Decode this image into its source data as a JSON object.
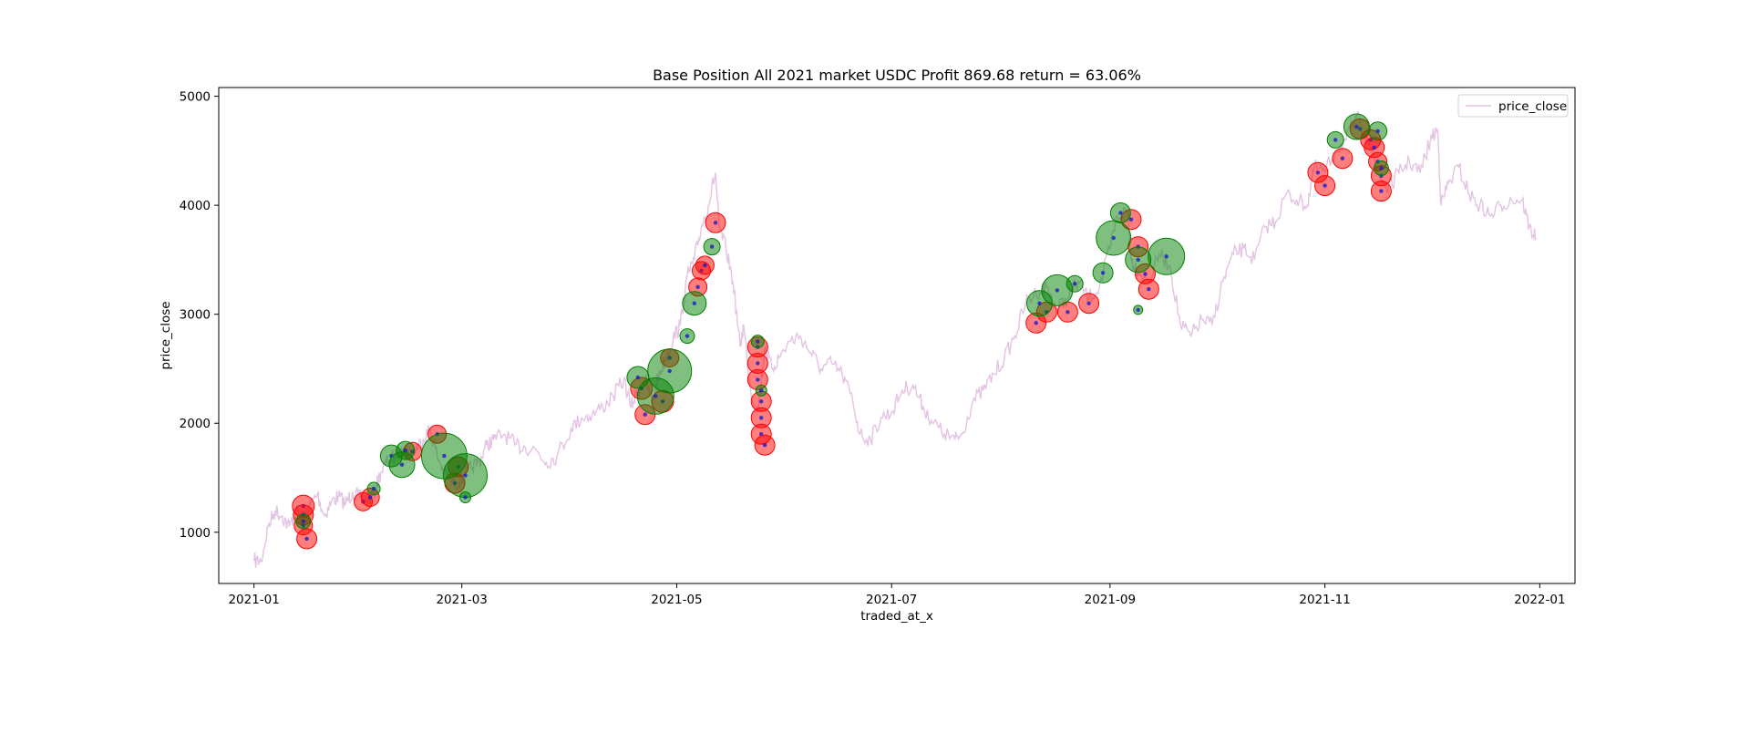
{
  "chart_data": {
    "type": "scatter",
    "title": "Base Position All 2021 market USDC Profit 869.68 return = 63.06%",
    "xlabel": "traded_at_x",
    "ylabel": "price_close",
    "xlim": [
      "2020-12-22",
      "2022-01-11"
    ],
    "ylim": [
      530,
      5080
    ],
    "x_ticks": [
      "2021-01",
      "2021-03",
      "2021-05",
      "2021-07",
      "2021-09",
      "2021-11",
      "2022-01"
    ],
    "y_ticks": [
      1000,
      2000,
      3000,
      4000,
      5000
    ],
    "legend": {
      "position": "upper-right",
      "entries": [
        "price_close"
      ]
    },
    "grid": false,
    "colors": {
      "price_line": "#e3c4e3",
      "buy": "#008000",
      "sell": "#ff0000",
      "marker_dot": "#1a1acc"
    },
    "series": [
      {
        "name": "price_close",
        "kind": "line",
        "points": [
          [
            "2021-01-01",
            740
          ],
          [
            "2021-01-03",
            730
          ],
          [
            "2021-01-05",
            1050
          ],
          [
            "2021-01-07",
            1200
          ],
          [
            "2021-01-09",
            1150
          ],
          [
            "2021-01-11",
            1050
          ],
          [
            "2021-01-13",
            1200
          ],
          [
            "2021-01-15",
            1100
          ],
          [
            "2021-01-17",
            1250
          ],
          [
            "2021-01-19",
            1350
          ],
          [
            "2021-01-21",
            1150
          ],
          [
            "2021-01-23",
            1280
          ],
          [
            "2021-01-25",
            1330
          ],
          [
            "2021-01-27",
            1260
          ],
          [
            "2021-01-29",
            1370
          ],
          [
            "2021-01-31",
            1320
          ],
          [
            "2021-02-02",
            1280
          ],
          [
            "2021-02-04",
            1350
          ],
          [
            "2021-02-06",
            1550
          ],
          [
            "2021-02-08",
            1650
          ],
          [
            "2021-02-10",
            1700
          ],
          [
            "2021-02-12",
            1780
          ],
          [
            "2021-02-14",
            1720
          ],
          [
            "2021-02-16",
            1760
          ],
          [
            "2021-02-18",
            1850
          ],
          [
            "2021-02-20",
            1950
          ],
          [
            "2021-02-22",
            1700
          ],
          [
            "2021-02-24",
            1550
          ],
          [
            "2021-02-26",
            1480
          ],
          [
            "2021-02-28",
            1450
          ],
          [
            "2021-03-02",
            1520
          ],
          [
            "2021-03-04",
            1600
          ],
          [
            "2021-03-06",
            1650
          ],
          [
            "2021-03-08",
            1800
          ],
          [
            "2021-03-10",
            1850
          ],
          [
            "2021-03-13",
            1900
          ],
          [
            "2021-03-16",
            1800
          ],
          [
            "2021-03-19",
            1780
          ],
          [
            "2021-03-22",
            1760
          ],
          [
            "2021-03-25",
            1640
          ],
          [
            "2021-03-28",
            1700
          ],
          [
            "2021-04-01",
            1950
          ],
          [
            "2021-04-04",
            2050
          ],
          [
            "2021-04-07",
            2080
          ],
          [
            "2021-04-10",
            2150
          ],
          [
            "2021-04-13",
            2250
          ],
          [
            "2021-04-16",
            2400
          ],
          [
            "2021-04-18",
            2150
          ],
          [
            "2021-04-20",
            2300
          ],
          [
            "2021-04-22",
            2400
          ],
          [
            "2021-04-24",
            2200
          ],
          [
            "2021-04-26",
            2450
          ],
          [
            "2021-04-28",
            2600
          ],
          [
            "2021-04-30",
            2780
          ],
          [
            "2021-05-02",
            2900
          ],
          [
            "2021-05-04",
            3350
          ],
          [
            "2021-05-06",
            3500
          ],
          [
            "2021-05-08",
            3800
          ],
          [
            "2021-05-10",
            4000
          ],
          [
            "2021-05-12",
            4300
          ],
          [
            "2021-05-13",
            3800
          ],
          [
            "2021-05-15",
            3600
          ],
          [
            "2021-05-17",
            3300
          ],
          [
            "2021-05-19",
            2700
          ],
          [
            "2021-05-20",
            2900
          ],
          [
            "2021-05-22",
            2300
          ],
          [
            "2021-05-24",
            2100
          ],
          [
            "2021-05-26",
            2700
          ],
          [
            "2021-05-28",
            2500
          ],
          [
            "2021-05-30",
            2600
          ],
          [
            "2021-06-02",
            2750
          ],
          [
            "2021-06-05",
            2800
          ],
          [
            "2021-06-08",
            2650
          ],
          [
            "2021-06-11",
            2500
          ],
          [
            "2021-06-14",
            2550
          ],
          [
            "2021-06-17",
            2450
          ],
          [
            "2021-06-20",
            2200
          ],
          [
            "2021-06-22",
            1900
          ],
          [
            "2021-06-25",
            1850
          ],
          [
            "2021-06-28",
            2050
          ],
          [
            "2021-07-01",
            2100
          ],
          [
            "2021-07-04",
            2300
          ],
          [
            "2021-07-07",
            2350
          ],
          [
            "2021-07-10",
            2150
          ],
          [
            "2021-07-13",
            2000
          ],
          [
            "2021-07-16",
            1900
          ],
          [
            "2021-07-19",
            1850
          ],
          [
            "2021-07-21",
            1900
          ],
          [
            "2021-07-24",
            2200
          ],
          [
            "2021-07-27",
            2300
          ],
          [
            "2021-07-30",
            2450
          ],
          [
            "2021-08-02",
            2600
          ],
          [
            "2021-08-05",
            2800
          ],
          [
            "2021-08-08",
            3100
          ],
          [
            "2021-08-11",
            3200
          ],
          [
            "2021-08-14",
            3250
          ],
          [
            "2021-08-17",
            3050
          ],
          [
            "2021-08-20",
            3150
          ],
          [
            "2021-08-23",
            3300
          ],
          [
            "2021-08-26",
            3150
          ],
          [
            "2021-08-29",
            3250
          ],
          [
            "2021-09-01",
            3600
          ],
          [
            "2021-09-03",
            3900
          ],
          [
            "2021-09-06",
            3950
          ],
          [
            "2021-09-07",
            3500
          ],
          [
            "2021-09-09",
            3400
          ],
          [
            "2021-09-12",
            3300
          ],
          [
            "2021-09-15",
            3550
          ],
          [
            "2021-09-18",
            3450
          ],
          [
            "2021-09-21",
            2900
          ],
          [
            "2021-09-24",
            2800
          ],
          [
            "2021-09-27",
            2950
          ],
          [
            "2021-09-30",
            2900
          ],
          [
            "2021-10-03",
            3300
          ],
          [
            "2021-10-06",
            3550
          ],
          [
            "2021-10-09",
            3600
          ],
          [
            "2021-10-12",
            3500
          ],
          [
            "2021-10-15",
            3800
          ],
          [
            "2021-10-18",
            3850
          ],
          [
            "2021-10-21",
            4100
          ],
          [
            "2021-10-24",
            4050
          ],
          [
            "2021-10-27",
            4000
          ],
          [
            "2021-10-29",
            4350
          ],
          [
            "2021-11-01",
            4300
          ],
          [
            "2021-11-04",
            4500
          ],
          [
            "2021-11-07",
            4600
          ],
          [
            "2021-11-10",
            4800
          ],
          [
            "2021-11-13",
            4650
          ],
          [
            "2021-11-16",
            4300
          ],
          [
            "2021-11-19",
            4150
          ],
          [
            "2021-11-22",
            4300
          ],
          [
            "2021-11-25",
            4400
          ],
          [
            "2021-11-28",
            4300
          ],
          [
            "2021-12-01",
            4600
          ],
          [
            "2021-12-03",
            4700
          ],
          [
            "2021-12-04",
            4000
          ],
          [
            "2021-12-06",
            4200
          ],
          [
            "2021-12-09",
            4350
          ],
          [
            "2021-12-12",
            4100
          ],
          [
            "2021-12-15",
            4000
          ],
          [
            "2021-12-18",
            3900
          ],
          [
            "2021-12-21",
            4000
          ],
          [
            "2021-12-24",
            4050
          ],
          [
            "2021-12-27",
            4050
          ],
          [
            "2021-12-29",
            3800
          ],
          [
            "2021-12-31",
            3700
          ]
        ]
      },
      {
        "name": "",
        "kind": "bubble",
        "color": "sell",
        "points": [
          [
            "2021-01-15",
            1240,
            12
          ],
          [
            "2021-01-15",
            1160,
            11
          ],
          [
            "2021-01-16",
            940,
            11
          ],
          [
            "2021-01-15",
            1060,
            10
          ],
          [
            "2021-02-01",
            1280,
            10
          ],
          [
            "2021-02-03",
            1320,
            10
          ],
          [
            "2021-02-15",
            1740,
            10
          ],
          [
            "2021-02-22",
            1900,
            10
          ],
          [
            "2021-02-27",
            1450,
            11
          ],
          [
            "2021-02-28",
            1600,
            11
          ],
          [
            "2021-04-21",
            2320,
            12
          ],
          [
            "2021-04-22",
            2080,
            11
          ],
          [
            "2021-04-27",
            2200,
            12
          ],
          [
            "2021-04-29",
            2600,
            10
          ],
          [
            "2021-05-07",
            3250,
            10
          ],
          [
            "2021-05-08",
            3400,
            10
          ],
          [
            "2021-05-09",
            3450,
            10
          ],
          [
            "2021-05-12",
            3840,
            11
          ],
          [
            "2021-05-24",
            2700,
            11
          ],
          [
            "2021-05-24",
            2550,
            11
          ],
          [
            "2021-05-24",
            2400,
            11
          ],
          [
            "2021-05-25",
            2200,
            11
          ],
          [
            "2021-05-25",
            2050,
            11
          ],
          [
            "2021-05-25",
            1900,
            11
          ],
          [
            "2021-05-26",
            1800,
            11
          ],
          [
            "2021-08-11",
            2920,
            11
          ],
          [
            "2021-08-14",
            3020,
            11
          ],
          [
            "2021-08-20",
            3020,
            11
          ],
          [
            "2021-08-26",
            3100,
            11
          ],
          [
            "2021-09-07",
            3870,
            11
          ],
          [
            "2021-09-09",
            3620,
            11
          ],
          [
            "2021-09-11",
            3370,
            11
          ],
          [
            "2021-09-12",
            3230,
            11
          ],
          [
            "2021-10-30",
            4300,
            11
          ],
          [
            "2021-11-01",
            4180,
            11
          ],
          [
            "2021-11-06",
            4430,
            11
          ],
          [
            "2021-11-11",
            4700,
            11
          ],
          [
            "2021-11-14",
            4600,
            11
          ],
          [
            "2021-11-15",
            4530,
            11
          ],
          [
            "2021-11-16",
            4400,
            10
          ],
          [
            "2021-11-17",
            4270,
            11
          ],
          [
            "2021-11-17",
            4130,
            11
          ]
        ]
      },
      {
        "name": "",
        "kind": "bubble",
        "color": "buy",
        "points": [
          [
            "2021-01-15",
            1100,
            8
          ],
          [
            "2021-02-04",
            1400,
            7
          ],
          [
            "2021-02-09",
            1700,
            12
          ],
          [
            "2021-02-12",
            1620,
            14
          ],
          [
            "2021-02-13",
            1750,
            10
          ],
          [
            "2021-02-24",
            1700,
            25
          ],
          [
            "2021-03-02",
            1520,
            24
          ],
          [
            "2021-03-02",
            1320,
            6
          ],
          [
            "2021-04-20",
            2420,
            12
          ],
          [
            "2021-04-25",
            2250,
            20
          ],
          [
            "2021-04-29",
            2480,
            24
          ],
          [
            "2021-05-04",
            2800,
            8
          ],
          [
            "2021-05-06",
            3100,
            13
          ],
          [
            "2021-05-11",
            3620,
            9
          ],
          [
            "2021-05-24",
            2750,
            7
          ],
          [
            "2021-05-25",
            2300,
            6
          ],
          [
            "2021-08-12",
            3100,
            14
          ],
          [
            "2021-08-17",
            3220,
            17
          ],
          [
            "2021-08-22",
            3280,
            9
          ],
          [
            "2021-08-30",
            3380,
            11
          ],
          [
            "2021-09-02",
            3700,
            19
          ],
          [
            "2021-09-04",
            3930,
            11
          ],
          [
            "2021-09-09",
            3500,
            14
          ],
          [
            "2021-09-17",
            3530,
            20
          ],
          [
            "2021-09-09",
            3040,
            5
          ],
          [
            "2021-11-04",
            4600,
            9
          ],
          [
            "2021-11-10",
            4720,
            14
          ],
          [
            "2021-11-16",
            4680,
            10
          ],
          [
            "2021-11-17",
            4340,
            8
          ]
        ]
      }
    ]
  }
}
